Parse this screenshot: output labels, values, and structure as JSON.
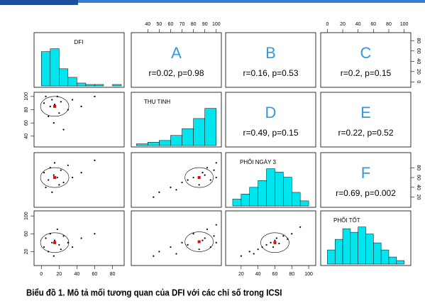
{
  "chart_data": {
    "type": "scatter-matrix",
    "variables": [
      {
        "name": "DFI",
        "lim": [
          -5,
          90
        ],
        "outer_ticks": [
          0,
          20,
          40,
          60,
          80
        ],
        "side_ticks": [
          0,
          20,
          40,
          60,
          80
        ],
        "hist": {
          "bins": [
            0,
            10,
            20,
            30,
            40,
            50,
            60,
            70,
            80,
            90
          ],
          "counts": [
            24,
            26,
            12,
            6,
            2,
            1,
            1,
            0,
            1
          ]
        }
      },
      {
        "name": "THỤ TINH",
        "lim": [
          28,
          102
        ],
        "outer_ticks": [
          40,
          50,
          60,
          70,
          80,
          90,
          100
        ],
        "side_ticks": [
          40,
          60,
          80,
          100
        ],
        "hist": {
          "bins": [
            30,
            40,
            50,
            60,
            70,
            80,
            90,
            100
          ],
          "counts": [
            1,
            2,
            3,
            6,
            10,
            16,
            22
          ]
        }
      },
      {
        "name": "PHÔI NGÀY 3",
        "lim": [
          5,
          105
        ],
        "outer_ticks": [
          20,
          40,
          60,
          80,
          100
        ],
        "side_ticks": [
          20,
          40,
          60,
          80
        ],
        "hist": {
          "bins": [
            10,
            20,
            30,
            40,
            50,
            60,
            70,
            80,
            90,
            100
          ],
          "counts": [
            4,
            7,
            11,
            15,
            22,
            20,
            17,
            8,
            3
          ]
        }
      },
      {
        "name": "PHÔI TỐT",
        "lim": [
          -5,
          105
        ],
        "outer_ticks": [
          0,
          20,
          40,
          60,
          80,
          100
        ],
        "side_ticks": [
          20,
          60,
          100
        ],
        "hist": {
          "bins": [
            0,
            10,
            20,
            30,
            40,
            50,
            60,
            70,
            80,
            90,
            100
          ],
          "counts": [
            8,
            14,
            20,
            18,
            21,
            17,
            12,
            8,
            4,
            2
          ]
        }
      }
    ],
    "scatter": [
      {
        "x": [
          3,
          5,
          8,
          10,
          12,
          14,
          15,
          18,
          20,
          22,
          25,
          30,
          35,
          45,
          60
        ],
        "y": [
          90,
          100,
          70,
          85,
          95,
          60,
          88,
          100,
          75,
          92,
          50,
          80,
          95,
          85,
          100
        ],
        "mean": [
          15,
          85
        ]
      },
      {
        "x": [
          3,
          5,
          8,
          10,
          12,
          14,
          15,
          18,
          20,
          22,
          25,
          30,
          35,
          45,
          60
        ],
        "y": [
          70,
          40,
          55,
          80,
          30,
          65,
          90,
          60,
          45,
          75,
          50,
          85,
          60,
          70,
          95
        ],
        "mean": [
          15,
          60
        ]
      },
      {
        "x": [
          50,
          60,
          70,
          75,
          80,
          85,
          88,
          90,
          92,
          95,
          98,
          100,
          100,
          65,
          45
        ],
        "y": [
          30,
          40,
          50,
          55,
          60,
          45,
          70,
          65,
          80,
          55,
          75,
          90,
          60,
          35,
          20
        ],
        "mean": [
          85,
          60
        ]
      },
      {
        "x": [
          3,
          5,
          8,
          10,
          12,
          14,
          15,
          18,
          20,
          22,
          25,
          30,
          35,
          45,
          60
        ],
        "y": [
          30,
          50,
          20,
          60,
          40,
          10,
          45,
          70,
          35,
          25,
          55,
          40,
          30,
          50,
          60
        ],
        "mean": [
          15,
          40
        ]
      },
      {
        "x": [
          50,
          60,
          70,
          75,
          80,
          85,
          88,
          90,
          92,
          95,
          98,
          100,
          100,
          65,
          45
        ],
        "y": [
          20,
          30,
          40,
          35,
          60,
          25,
          45,
          50,
          70,
          30,
          55,
          40,
          80,
          15,
          10
        ],
        "mean": [
          85,
          42
        ]
      },
      {
        "x": [
          20,
          30,
          40,
          45,
          50,
          55,
          60,
          62,
          65,
          70,
          75,
          80,
          90,
          35,
          58
        ],
        "y": [
          10,
          20,
          25,
          30,
          35,
          40,
          45,
          50,
          38,
          55,
          48,
          60,
          75,
          15,
          30
        ],
        "mean": [
          60,
          40
        ]
      }
    ],
    "correlations": [
      {
        "letter": "A",
        "text": "r=0.02, p=0.98"
      },
      {
        "letter": "B",
        "text": "r=0.16, p=0.53"
      },
      {
        "letter": "C",
        "text": "r=0.2, p=0.15"
      },
      {
        "letter": "D",
        "text": "r=0.49, p=0.15"
      },
      {
        "letter": "E",
        "text": "r=0.22, p=0.52"
      },
      {
        "letter": "F",
        "text": "r=0.69, p=0.002"
      }
    ]
  },
  "caption": "Biểu đồ 1. Mô tả mối tương quan của DFI với các chỉ số trong ICSI"
}
